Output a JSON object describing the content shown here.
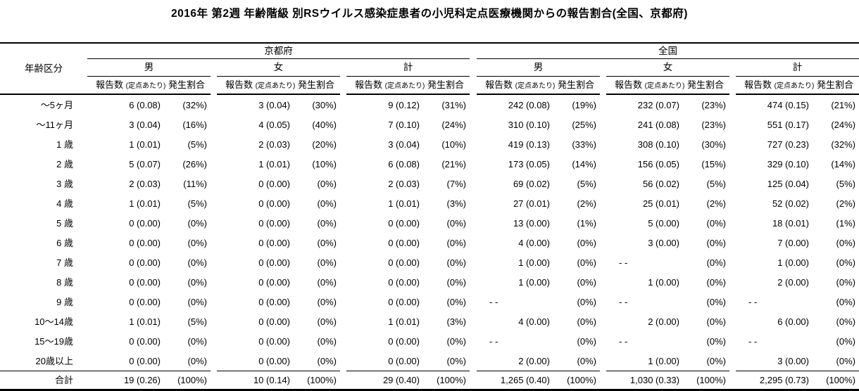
{
  "title": "2016年 第2週 年齢階級 別RSウイルス感染症患者の小児科定点医療機関からの報告割合(全国、京都府)",
  "colors": {
    "background": "#ffffff",
    "text": "#000000",
    "rule": "#000000"
  },
  "table": {
    "corner_header": "年齢区分",
    "regions": [
      {
        "name": "京都府"
      },
      {
        "name": "全国"
      }
    ],
    "sex_headers": [
      "男",
      "女",
      "計"
    ],
    "subheader": {
      "reports": "報告数",
      "per_sentinel": "(定点あたり)",
      "ratio": "発生割合"
    },
    "rows": [
      {
        "age": "〜5ヶ月",
        "cells": [
          "6 (0.08)",
          "(32%)",
          "3 (0.04)",
          "(30%)",
          "9 (0.12)",
          "(31%)",
          "242 (0.08)",
          "(19%)",
          "232 (0.07)",
          "(23%)",
          "474 (0.15)",
          "(21%)"
        ]
      },
      {
        "age": "〜11ヶ月",
        "cells": [
          "3 (0.04)",
          "(16%)",
          "4 (0.05)",
          "(40%)",
          "7 (0.10)",
          "(24%)",
          "310 (0.10)",
          "(25%)",
          "241 (0.08)",
          "(23%)",
          "551 (0.17)",
          "(24%)"
        ]
      },
      {
        "age": "1 歳",
        "cells": [
          "1 (0.01)",
          "(5%)",
          "2 (0.03)",
          "(20%)",
          "3 (0.04)",
          "(10%)",
          "419 (0.13)",
          "(33%)",
          "308 (0.10)",
          "(30%)",
          "727 (0.23)",
          "(32%)"
        ]
      },
      {
        "age": "2 歳",
        "cells": [
          "5 (0.07)",
          "(26%)",
          "1 (0.01)",
          "(10%)",
          "6 (0.08)",
          "(21%)",
          "173 (0.05)",
          "(14%)",
          "156 (0.05)",
          "(15%)",
          "329 (0.10)",
          "(14%)"
        ]
      },
      {
        "age": "3 歳",
        "cells": [
          "2 (0.03)",
          "(11%)",
          "0 (0.00)",
          "(0%)",
          "2 (0.03)",
          "(7%)",
          "69 (0.02)",
          "(5%)",
          "56 (0.02)",
          "(5%)",
          "125 (0.04)",
          "(5%)"
        ]
      },
      {
        "age": "4 歳",
        "cells": [
          "1 (0.01)",
          "(5%)",
          "0 (0.00)",
          "(0%)",
          "1 (0.01)",
          "(3%)",
          "27 (0.01)",
          "(2%)",
          "25 (0.01)",
          "(2%)",
          "52 (0.02)",
          "(2%)"
        ]
      },
      {
        "age": "5 歳",
        "cells": [
          "0 (0.00)",
          "(0%)",
          "0 (0.00)",
          "(0%)",
          "0 (0.00)",
          "(0%)",
          "13 (0.00)",
          "(1%)",
          "5 (0.00)",
          "(0%)",
          "18 (0.01)",
          "(1%)"
        ]
      },
      {
        "age": "6 歳",
        "cells": [
          "0 (0.00)",
          "(0%)",
          "0 (0.00)",
          "(0%)",
          "0 (0.00)",
          "(0%)",
          "4 (0.00)",
          "(0%)",
          "3 (0.00)",
          "(0%)",
          "7 (0.00)",
          "(0%)"
        ]
      },
      {
        "age": "7 歳",
        "cells": [
          "0 (0.00)",
          "(0%)",
          "0 (0.00)",
          "(0%)",
          "0 (0.00)",
          "(0%)",
          "1 (0.00)",
          "(0%)",
          "- -",
          "(0%)",
          "1 (0.00)",
          "(0%)"
        ]
      },
      {
        "age": "8 歳",
        "cells": [
          "0 (0.00)",
          "(0%)",
          "0 (0.00)",
          "(0%)",
          "0 (0.00)",
          "(0%)",
          "1 (0.00)",
          "(0%)",
          "1 (0.00)",
          "(0%)",
          "2 (0.00)",
          "(0%)"
        ]
      },
      {
        "age": "9 歳",
        "cells": [
          "0 (0.00)",
          "(0%)",
          "0 (0.00)",
          "(0%)",
          "0 (0.00)",
          "(0%)",
          "- -",
          "(0%)",
          "- -",
          "(0%)",
          "- -",
          "(0%)"
        ]
      },
      {
        "age": "10〜14歳",
        "cells": [
          "1 (0.01)",
          "(5%)",
          "0 (0.00)",
          "(0%)",
          "1 (0.01)",
          "(3%)",
          "4 (0.00)",
          "(0%)",
          "2 (0.00)",
          "(0%)",
          "6 (0.00)",
          "(0%)"
        ]
      },
      {
        "age": "15〜19歳",
        "cells": [
          "0 (0.00)",
          "(0%)",
          "0 (0.00)",
          "(0%)",
          "0 (0.00)",
          "(0%)",
          "- -",
          "(0%)",
          "- -",
          "(0%)",
          "- -",
          "(0%)"
        ]
      },
      {
        "age": "20歳以上",
        "cells": [
          "0 (0.00)",
          "(0%)",
          "0 (0.00)",
          "(0%)",
          "0 (0.00)",
          "(0%)",
          "2 (0.00)",
          "(0%)",
          "1 (0.00)",
          "(0%)",
          "3 (0.00)",
          "(0%)"
        ]
      }
    ],
    "total_row": {
      "age": "合計",
      "cells": [
        "19 (0.26)",
        "(100%)",
        "10 (0.14)",
        "(100%)",
        "29 (0.40)",
        "(100%)",
        "1,265 (0.40)",
        "(100%)",
        "1,030 (0.33)",
        "(100%)",
        "2,295 (0.73)",
        "(100%)"
      ]
    }
  }
}
